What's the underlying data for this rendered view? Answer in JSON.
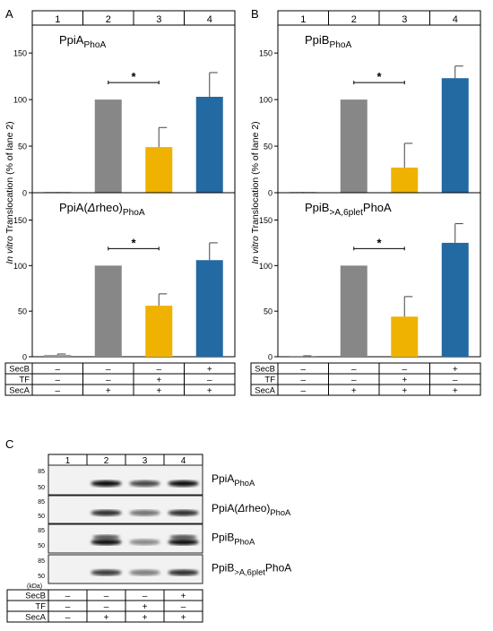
{
  "panels": {
    "A": {
      "letter": "A"
    },
    "B": {
      "letter": "B"
    },
    "C": {
      "letter": "C"
    }
  },
  "lanes": [
    "1",
    "2",
    "3",
    "4"
  ],
  "shared_ylabel_italic": "In vitro",
  "shared_ylabel_rest": " Translocation (% of lane 2)",
  "conditions": {
    "rows": [
      {
        "label": "SecB",
        "values": [
          "–",
          "–",
          "–",
          "+"
        ]
      },
      {
        "label": "TF",
        "values": [
          "–",
          "–",
          "+",
          "–"
        ]
      },
      {
        "label": "SecA",
        "values": [
          "–",
          "+",
          "+",
          "+"
        ]
      }
    ]
  },
  "colors": {
    "lane1": "#9a9a9a",
    "lane2": "#878787",
    "lane3": "#f0b200",
    "lane4": "#2369a2"
  },
  "chart_data": [
    {
      "type": "bar",
      "panel": "A",
      "label_main": "PpiA",
      "label_sub": "PhoA",
      "categories": [
        "1",
        "2",
        "3",
        "4"
      ],
      "values": [
        0,
        100,
        49,
        103
      ],
      "errors": [
        0,
        0,
        21,
        26
      ],
      "ylim": [
        0,
        180
      ],
      "yticks": [
        "0",
        "50",
        "100",
        "150"
      ],
      "significance": "*"
    },
    {
      "type": "bar",
      "panel": "A",
      "label_main": "PpiA(",
      "label_italic": "Δ",
      "label_main2": "rheo)",
      "label_sub": "PhoA",
      "categories": [
        "1",
        "2",
        "3",
        "4"
      ],
      "values": [
        2,
        100,
        56,
        106
      ],
      "errors": [
        1,
        0,
        13,
        19
      ],
      "ylim": [
        0,
        180
      ],
      "yticks": [
        "0",
        "50",
        "100",
        "150"
      ],
      "significance": "*"
    },
    {
      "type": "bar",
      "panel": "B",
      "label_main": "PpiB",
      "label_sub": "PhoA",
      "categories": [
        "1",
        "2",
        "3",
        "4"
      ],
      "values": [
        0,
        100,
        27,
        123
      ],
      "errors": [
        0,
        0,
        26,
        13
      ],
      "ylim": [
        0,
        180
      ],
      "yticks": [
        "0",
        "50",
        "100",
        "150"
      ],
      "significance": "*"
    },
    {
      "type": "bar",
      "panel": "B",
      "label_main": "PpiB",
      "label_sub": ">A,6plet",
      "label_after": "PhoA",
      "categories": [
        "1",
        "2",
        "3",
        "4"
      ],
      "values": [
        1,
        100,
        44,
        125
      ],
      "errors": [
        0,
        0,
        22,
        21
      ],
      "ylim": [
        0,
        180
      ],
      "yticks": [
        "0",
        "50",
        "100",
        "150"
      ],
      "significance": "*"
    }
  ],
  "blot": {
    "kda_label": "(kDa)",
    "rows": [
      {
        "markers": [
          "85",
          "50"
        ],
        "label_main": "PpiA",
        "label_sub": "PhoA"
      },
      {
        "markers": [
          "85",
          "50"
        ],
        "label_main": "PpiA(",
        "label_italic": "Δ",
        "label_main2": "rheo)",
        "label_sub": "PhoA"
      },
      {
        "markers": [
          "85",
          "50"
        ],
        "label_main": "PpiB",
        "label_sub": "PhoA"
      },
      {
        "markers": [
          "85",
          "50"
        ],
        "label_main": "PpiB",
        "label_sub": ">A,6plet",
        "label_after": "PhoA"
      }
    ]
  }
}
